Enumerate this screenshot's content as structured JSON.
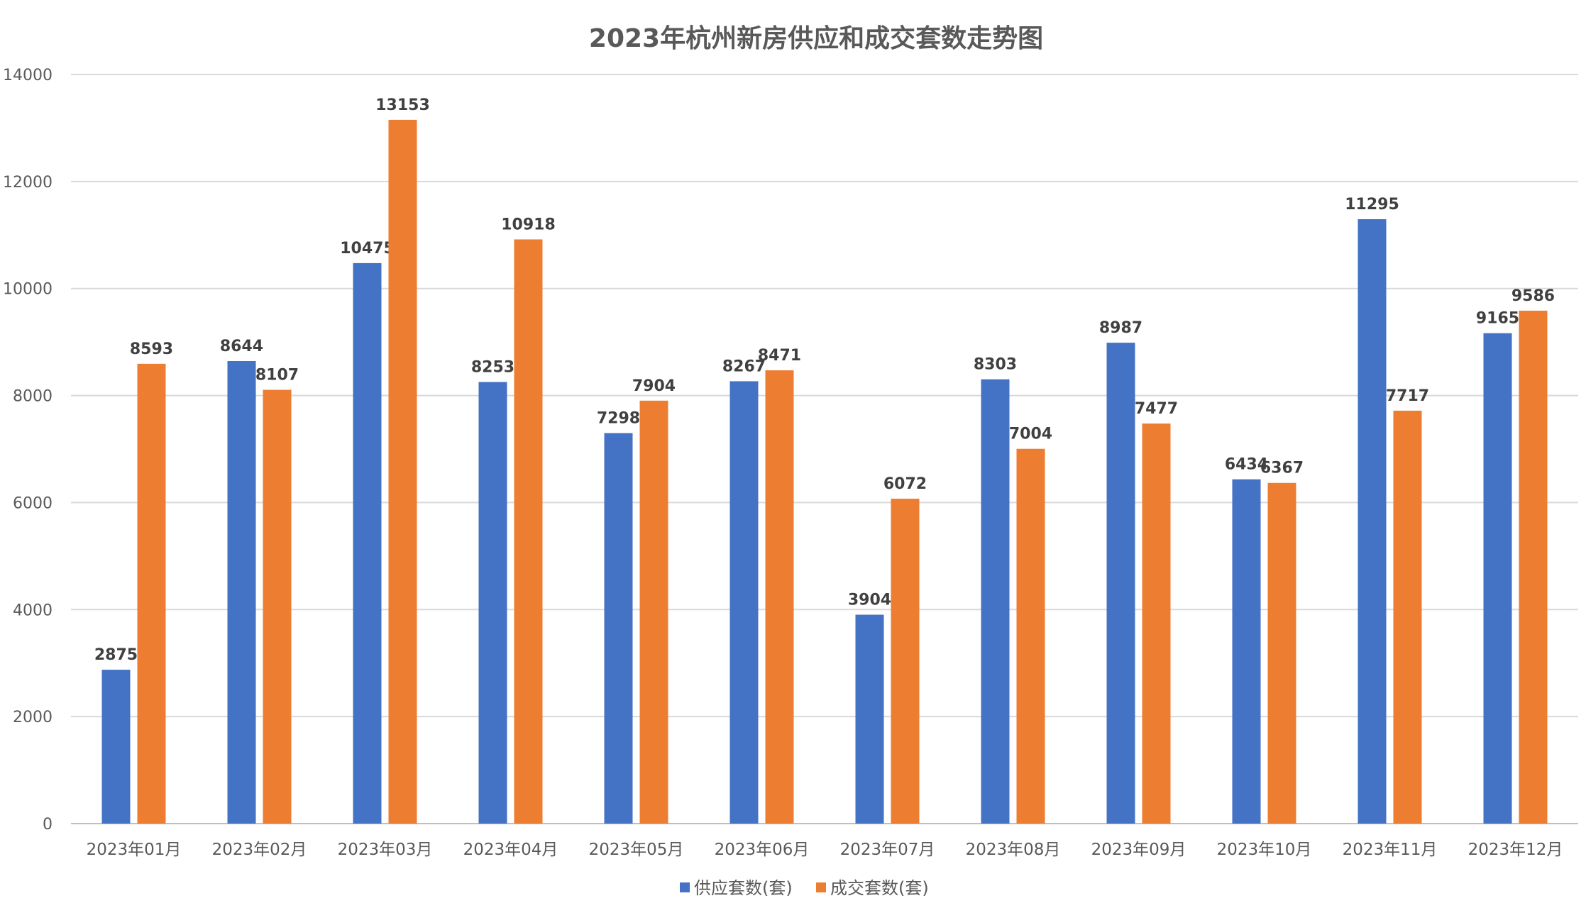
{
  "chart_data": {
    "type": "bar",
    "title": "2023年杭州新房供应和成交套数走势图",
    "categories": [
      "2023年01月",
      "2023年02月",
      "2023年03月",
      "2023年04月",
      "2023年05月",
      "2023年06月",
      "2023年07月",
      "2023年08月",
      "2023年09月",
      "2023年10月",
      "2023年11月",
      "2023年12月"
    ],
    "series": [
      {
        "name": "供应套数(套)",
        "color": "#4472C4",
        "values": [
          2875,
          8644,
          10475,
          8253,
          7298,
          8267,
          3904,
          8303,
          8987,
          6434,
          11295,
          9165
        ]
      },
      {
        "name": "成交套数(套)",
        "color": "#ED7D31",
        "values": [
          8593,
          8107,
          13153,
          10918,
          7904,
          8471,
          6072,
          7004,
          7477,
          6367,
          7717,
          9586
        ]
      }
    ],
    "ylim": [
      0,
      14000
    ],
    "yticks": [
      0,
      2000,
      4000,
      6000,
      8000,
      10000,
      12000,
      14000
    ],
    "grid": true,
    "legend": "bottom",
    "data_labels": true
  }
}
